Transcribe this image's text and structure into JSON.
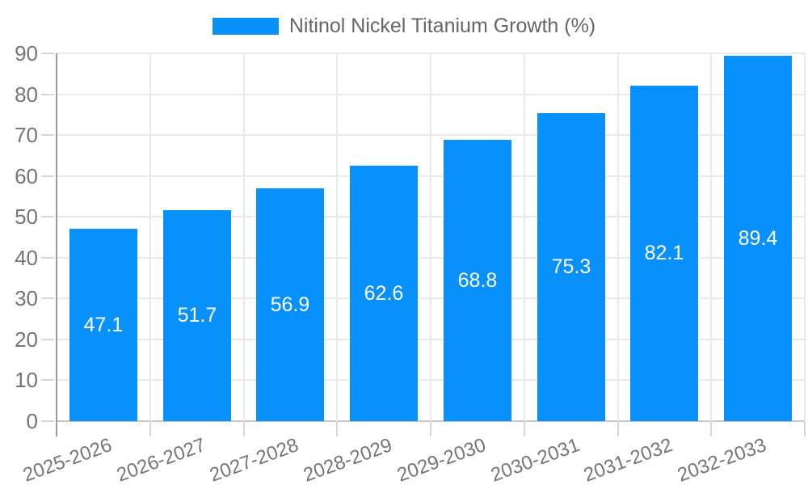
{
  "chart_data": {
    "type": "bar",
    "series_name": "Nitinol Nickel Titanium Growth (%)",
    "categories": [
      "2025-2026",
      "2026-2027",
      "2027-2028",
      "2028-2029",
      "2029-2030",
      "2030-2031",
      "2031-2032",
      "2032-2033"
    ],
    "values": [
      47.1,
      51.7,
      56.9,
      62.6,
      68.8,
      75.3,
      82.1,
      89.4
    ],
    "title": "",
    "xlabel": "",
    "ylabel": "",
    "ylim": [
      0,
      90
    ],
    "ytick_step": 10,
    "yticks": [
      0,
      10,
      20,
      30,
      40,
      50,
      60,
      70,
      80,
      90
    ],
    "legend_position": "top",
    "grid": true,
    "colors": {
      "bar": "#0991fb",
      "grid_line": "#e9e9e9",
      "tick_mark": "#d6d6d6",
      "y_axis_line": "#9a9a9a",
      "x_axis_line": "#c6c6c6",
      "tick_text": "#757575",
      "legend_text": "#666666",
      "value_text": "#ffffff",
      "background": "#ffffff"
    }
  }
}
